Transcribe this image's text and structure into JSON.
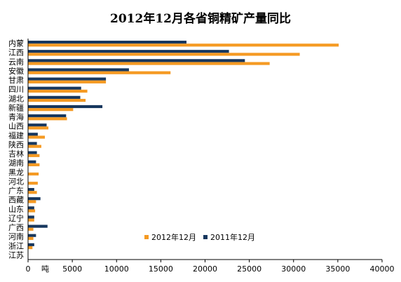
{
  "chart_data": {
    "type": "bar",
    "orientation": "horizontal",
    "title": "2012年12月各省铜精矿产量同比",
    "xlabel": "吨",
    "xlim": [
      0,
      40000
    ],
    "x_ticks": [
      "0",
      "5000",
      "10000",
      "15000",
      "20000",
      "25000",
      "30000",
      "35000",
      "40000"
    ],
    "categories": [
      "内蒙",
      "江西",
      "云南",
      "安徽",
      "甘肃",
      "四川",
      "湖北",
      "新疆",
      "青海",
      "山西",
      "福建",
      "陕西",
      "吉林",
      "湖南",
      "黑龙",
      "河北",
      "广东",
      "西藏",
      "山东",
      "辽宁",
      "广西",
      "河南",
      "浙江",
      "江苏"
    ],
    "series": [
      {
        "name": "2011年12月",
        "color": "#17375E",
        "values": [
          17900,
          22700,
          24500,
          11400,
          8800,
          6000,
          5900,
          8400,
          4300,
          2100,
          1100,
          1000,
          1000,
          900,
          0,
          0,
          700,
          1400,
          700,
          700,
          2200,
          900,
          700,
          0
        ]
      },
      {
        "name": "2012年12月",
        "color": "#F59A23",
        "values": [
          35100,
          30700,
          27300,
          16100,
          8800,
          6700,
          6500,
          5100,
          4400,
          2300,
          1900,
          1500,
          1300,
          1300,
          1200,
          1100,
          1000,
          900,
          800,
          700,
          600,
          600,
          500,
          0
        ]
      }
    ],
    "legend_position": "bottom-center",
    "grid": false
  }
}
